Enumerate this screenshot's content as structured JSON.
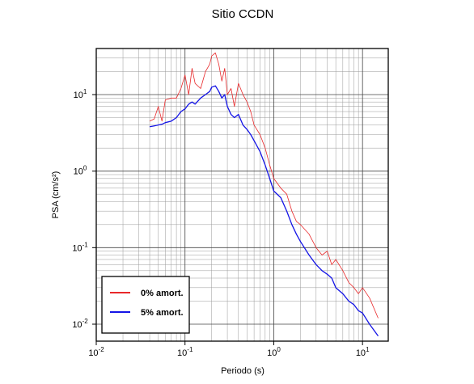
{
  "chart_data": {
    "type": "line",
    "title": "Sitio CCDN",
    "x_label": "Periodo (s)",
    "y_label": "PSA (cm/s²)",
    "x_log": true,
    "y_log": true,
    "grid": true,
    "minor_grid": true,
    "legend_position": "lower left",
    "xlim": [
      0.01,
      19.5
    ],
    "ylim": [
      0.006,
      40
    ],
    "xticks": [
      {
        "value": 0.01,
        "label": "10",
        "exponent": "-2"
      },
      {
        "value": 0.1,
        "label": "10",
        "exponent": "-1"
      },
      {
        "value": 1,
        "label": "10",
        "exponent": "0"
      },
      {
        "value": 10,
        "label": "10",
        "exponent": "1"
      }
    ],
    "yticks": [
      {
        "value": 0.01,
        "label": "10",
        "exponent": "-2"
      },
      {
        "value": 0.1,
        "label": "10",
        "exponent": "-1"
      },
      {
        "value": 1,
        "label": "10",
        "exponent": "0"
      },
      {
        "value": 10,
        "label": "10",
        "exponent": "1"
      }
    ],
    "x": [
      0.04,
      0.045,
      0.05,
      0.055,
      0.06,
      0.07,
      0.08,
      0.09,
      0.1,
      0.11,
      0.12,
      0.13,
      0.15,
      0.17,
      0.19,
      0.2,
      0.22,
      0.24,
      0.26,
      0.28,
      0.3,
      0.33,
      0.36,
      0.4,
      0.45,
      0.5,
      0.55,
      0.6,
      0.7,
      0.8,
      0.9,
      1.0,
      1.2,
      1.4,
      1.6,
      1.8,
      2.0,
      2.5,
      3,
      3.5,
      4,
      4.5,
      5,
      6,
      7,
      8,
      9,
      10,
      12,
      15
    ],
    "series": [
      {
        "name": "0% amort.",
        "color": "#e8282a",
        "width": 0.8,
        "values": [
          4.5,
          4.8,
          7,
          4.5,
          8.5,
          9,
          9,
          12,
          18,
          10,
          22,
          14,
          12,
          20,
          25,
          32,
          35,
          25,
          15,
          22,
          10,
          12,
          7,
          14,
          10,
          8,
          6,
          4,
          3,
          2,
          1.2,
          0.8,
          0.6,
          0.5,
          0.3,
          0.22,
          0.2,
          0.15,
          0.1,
          0.08,
          0.09,
          0.06,
          0.07,
          0.05,
          0.035,
          0.03,
          0.025,
          0.03,
          0.022,
          0.012
        ]
      },
      {
        "name": "5% amort.",
        "color": "#1414e6",
        "width": 1.3,
        "values": [
          3.8,
          3.9,
          4,
          4.1,
          4.3,
          4.5,
          5,
          6,
          6.5,
          7.5,
          8,
          7.5,
          9,
          10,
          11,
          12.5,
          13,
          11,
          9,
          10,
          7,
          5.5,
          5,
          5.5,
          4,
          3.5,
          3,
          2.5,
          1.8,
          1.2,
          0.8,
          0.55,
          0.45,
          0.3,
          0.2,
          0.15,
          0.12,
          0.08,
          0.06,
          0.05,
          0.045,
          0.04,
          0.03,
          0.025,
          0.02,
          0.018,
          0.015,
          0.014,
          0.01,
          0.007
        ]
      }
    ]
  }
}
